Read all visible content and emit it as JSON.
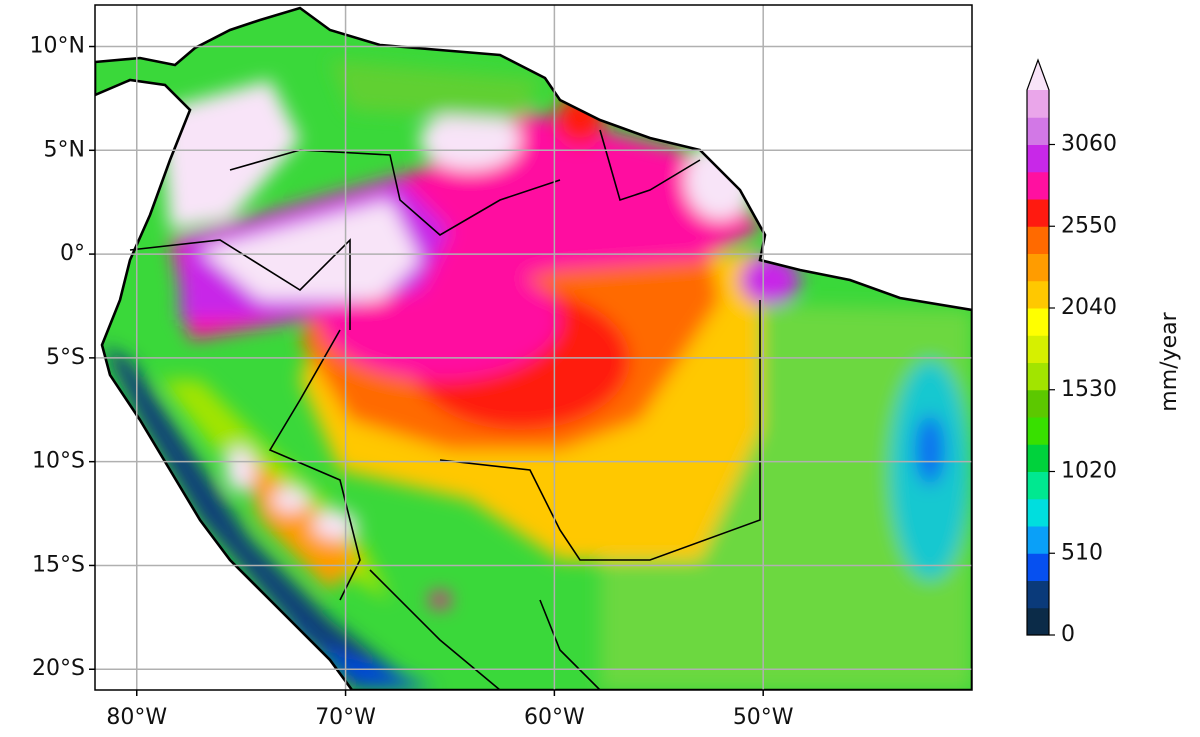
{
  "map": {
    "xlim": [
      -82,
      -40
    ],
    "ylim": [
      -21,
      12
    ],
    "grid": true,
    "xticks": [
      {
        "value": -80,
        "label": "80°W"
      },
      {
        "value": -70,
        "label": "70°W"
      },
      {
        "value": -60,
        "label": "60°W"
      },
      {
        "value": -50,
        "label": "50°W"
      }
    ],
    "yticks": [
      {
        "value": 10,
        "label": "10°N"
      },
      {
        "value": 5,
        "label": "5°N"
      },
      {
        "value": 0,
        "label": "0°"
      },
      {
        "value": -5,
        "label": "5°S"
      },
      {
        "value": -10,
        "label": "10°S"
      },
      {
        "value": -15,
        "label": "15°S"
      },
      {
        "value": -20,
        "label": "20°S"
      }
    ],
    "colorbar": {
      "label": "mm/year",
      "levels": [
        0,
        170,
        340,
        510,
        680,
        850,
        1020,
        1190,
        1360,
        1530,
        1700,
        1870,
        2040,
        2210,
        2380,
        2550,
        2720,
        2890,
        3060,
        3230,
        3400
      ],
      "colors": [
        "#0b2b48",
        "#0a3a7a",
        "#0650f0",
        "#0aa0f8",
        "#00dede",
        "#00e890",
        "#00d23c",
        "#38e000",
        "#5cc800",
        "#a2e400",
        "#d6f000",
        "#ffff00",
        "#ffc800",
        "#ff9c00",
        "#ff6a00",
        "#ff1a10",
        "#ff10a0",
        "#c828e8",
        "#d278e6",
        "#eaa6ea"
      ],
      "extend_color": "#f8e4f8",
      "ticks": [
        0,
        510,
        1020,
        1530,
        2040,
        2550,
        3060
      ]
    }
  }
}
